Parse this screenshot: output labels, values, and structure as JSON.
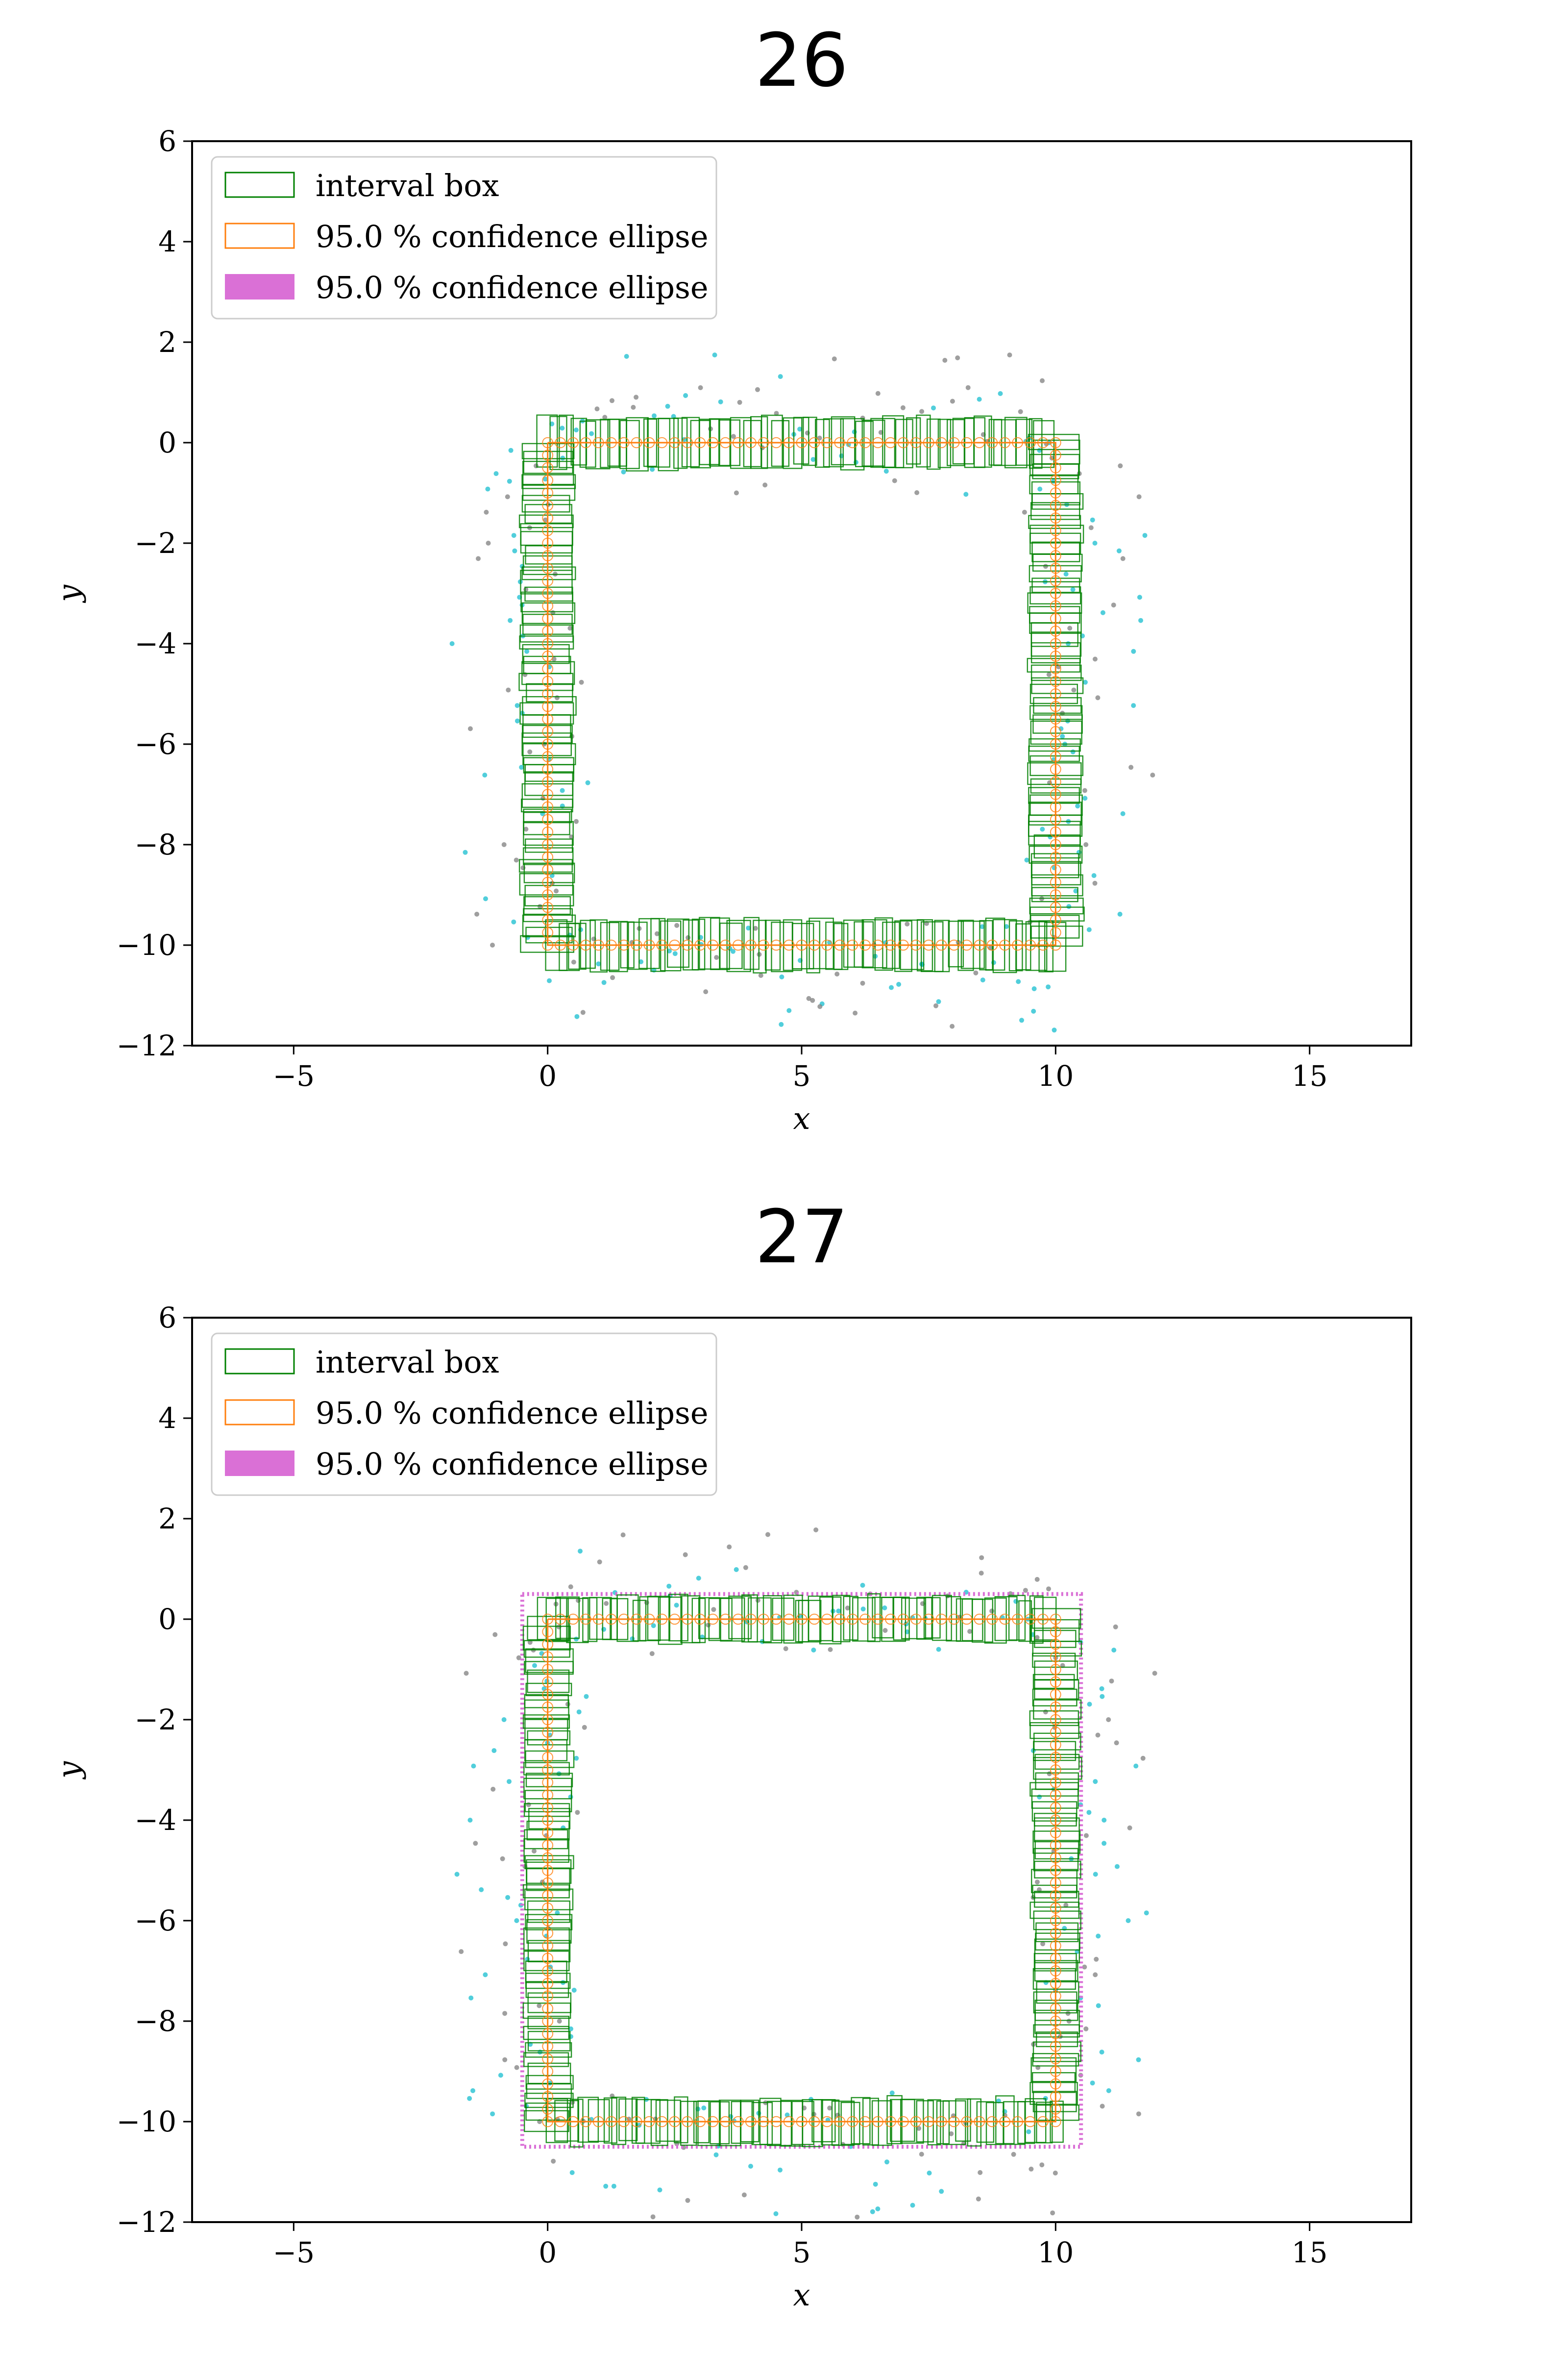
{
  "chart_data": [
    {
      "type": "scatter",
      "title": "26",
      "xlabel": "x",
      "ylabel": "y",
      "xlim": [
        -7,
        17
      ],
      "ylim": [
        -12,
        6
      ],
      "xticks": [
        -5,
        0,
        5,
        10,
        15
      ],
      "yticks": [
        -12,
        -10,
        -8,
        -6,
        -4,
        -2,
        0,
        2,
        4,
        6
      ],
      "xtick_labels": [
        "−5",
        "0",
        "5",
        "10",
        "15"
      ],
      "ytick_labels": [
        "−12",
        "−10",
        "−8",
        "−6",
        "−4",
        "−2",
        "0",
        "2",
        "4",
        "6"
      ],
      "grid": false,
      "legend_placement": "upper-left",
      "legend": [
        {
          "label": "interval box",
          "style": "outline",
          "color": "#008000"
        },
        {
          "label": "95.0 % confidence ellipse",
          "style": "outline",
          "color": "#ff7f0e"
        },
        {
          "label": "95.0 % confidence ellipse",
          "style": "fill",
          "color": "#da70d6"
        }
      ],
      "path": {
        "corners": [
          [
            0,
            0
          ],
          [
            10,
            0
          ],
          [
            10,
            -10
          ],
          [
            0,
            -10
          ]
        ]
      },
      "interval_box_half_width": 0.45,
      "confidence_ellipse_spread": 0.1,
      "wide_ellipse_visible": false,
      "noise_spread": 1.0,
      "scatter_colors": {
        "cyan": "#17becf",
        "gray": "#7f7f7f"
      }
    },
    {
      "type": "scatter",
      "title": "27",
      "xlabel": "x",
      "ylabel": "y",
      "xlim": [
        -7,
        17
      ],
      "ylim": [
        -12,
        6
      ],
      "xticks": [
        -5,
        0,
        5,
        10,
        15
      ],
      "yticks": [
        -12,
        -10,
        -8,
        -6,
        -4,
        -2,
        0,
        2,
        4,
        6
      ],
      "xtick_labels": [
        "−5",
        "0",
        "5",
        "10",
        "15"
      ],
      "ytick_labels": [
        "−12",
        "−10",
        "−8",
        "−6",
        "−4",
        "−2",
        "0",
        "2",
        "4",
        "6"
      ],
      "grid": false,
      "legend_placement": "upper-left",
      "legend": [
        {
          "label": "interval box",
          "style": "outline",
          "color": "#008000"
        },
        {
          "label": "95.0 % confidence ellipse",
          "style": "outline",
          "color": "#ff7f0e"
        },
        {
          "label": "95.0 % confidence ellipse",
          "style": "fill",
          "color": "#da70d6"
        }
      ],
      "path": {
        "corners": [
          [
            0,
            0
          ],
          [
            10,
            0
          ],
          [
            10,
            -10
          ],
          [
            0,
            -10
          ]
        ]
      },
      "interval_box_half_width": 0.4,
      "confidence_ellipse_spread": 0.1,
      "wide_ellipse_visible": true,
      "wide_ellipse_half_width": 0.5,
      "noise_spread": 1.1,
      "scatter_colors": {
        "cyan": "#17becf",
        "gray": "#7f7f7f"
      }
    }
  ]
}
